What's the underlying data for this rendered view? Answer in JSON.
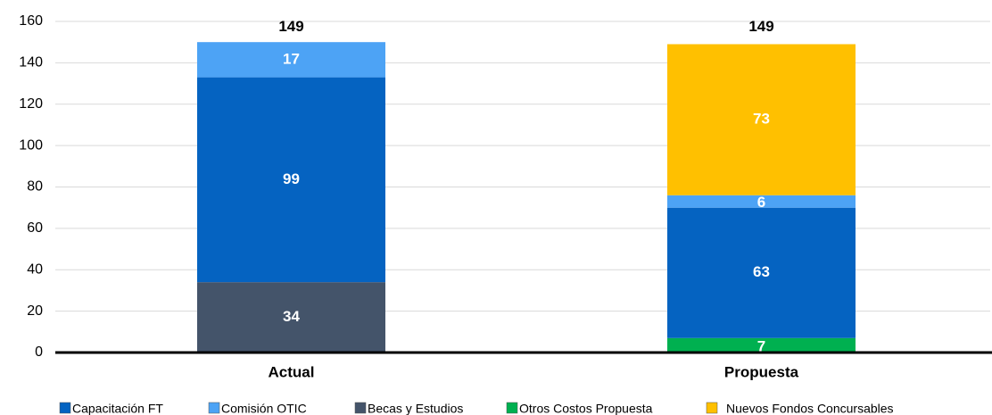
{
  "chart_data": {
    "type": "stacked_bar",
    "categories": [
      "Actual",
      "Propuesta"
    ],
    "series": [
      {
        "name": "Capacitación FT",
        "color": "#0563c1",
        "values": [
          99,
          63
        ]
      },
      {
        "name": "Comisión OTIC",
        "color": "#4da3f5",
        "values": [
          17,
          6
        ]
      },
      {
        "name": "Becas y Estudios",
        "color": "#44546a",
        "values": [
          34,
          null
        ]
      },
      {
        "name": "Otros Costos Propuesta",
        "color": "#00b050",
        "values": [
          null,
          7
        ]
      },
      {
        "name": "Nuevos Fondos Concursables",
        "color": "#ffc000",
        "values": [
          null,
          73
        ]
      }
    ],
    "totals": [
      149,
      149
    ],
    "ylim": [
      0,
      160
    ],
    "yticks": [
      0,
      20,
      40,
      60,
      80,
      100,
      120,
      140,
      160
    ],
    "grid": true
  }
}
